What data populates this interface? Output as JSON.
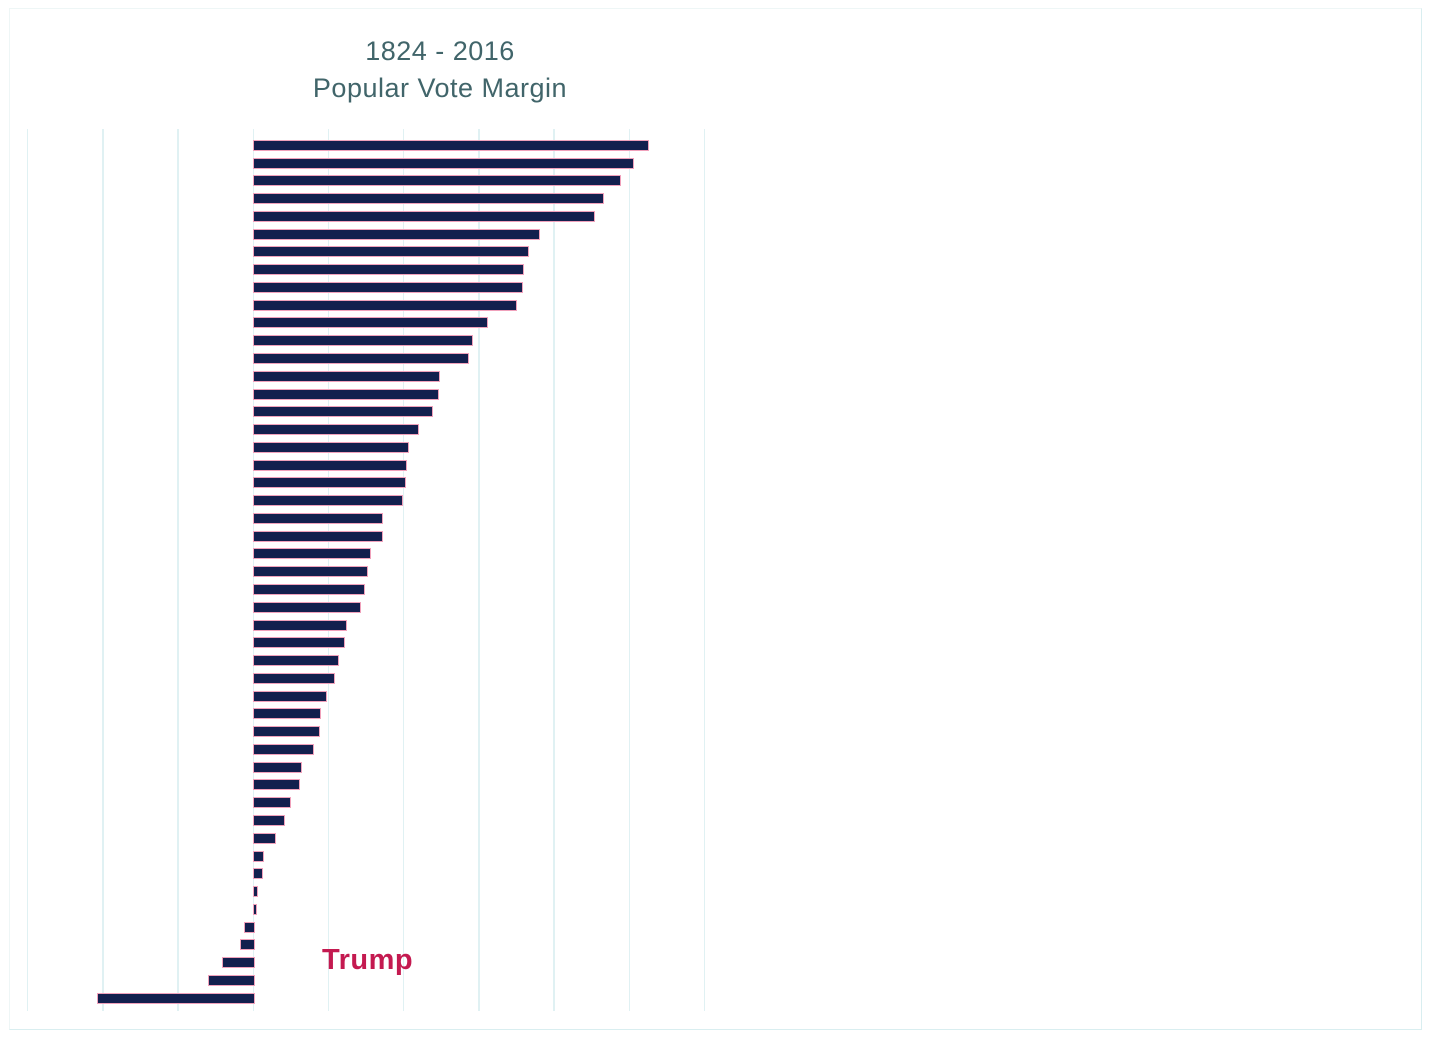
{
  "chart_data": {
    "type": "bar",
    "orientation": "horizontal",
    "title_line1": "1824 - 2016",
    "title_line2": "Popular Vote Margin",
    "x_axis": {
      "min": -15,
      "max": 30,
      "step": 5,
      "gridlines": true,
      "tick_labels_visible": false
    },
    "y_axis": {
      "tick_labels_visible": false
    },
    "ylabel": "",
    "xlabel": "",
    "legend_position": "none",
    "bar_count": 49,
    "values": [
      26.2,
      25.2,
      24.3,
      23.2,
      22.6,
      18.9,
      18.2,
      17.9,
      17.8,
      17.4,
      15.5,
      14.5,
      14.2,
      12.3,
      12.2,
      11.8,
      10.9,
      10.2,
      10.1,
      10.0,
      9.8,
      8.5,
      8.5,
      7.7,
      7.5,
      7.3,
      7.0,
      6.1,
      6.0,
      5.6,
      5.3,
      4.8,
      4.4,
      4.3,
      3.9,
      3.1,
      3.0,
      2.4,
      2.0,
      1.4,
      0.6,
      0.5,
      0.17,
      0.09,
      -0.6,
      -0.9,
      -2.1,
      -3.0,
      -10.4
    ],
    "annotation": {
      "label": "Trump",
      "value": -2.1,
      "row_index": 46,
      "color": "#c41a50"
    },
    "colors": {
      "bar_fill": "#13204e",
      "bar_border": "#f0a1bb",
      "gridline": "#e0f1f3",
      "title": "#41656a",
      "card_border": "#d9eef0"
    }
  }
}
